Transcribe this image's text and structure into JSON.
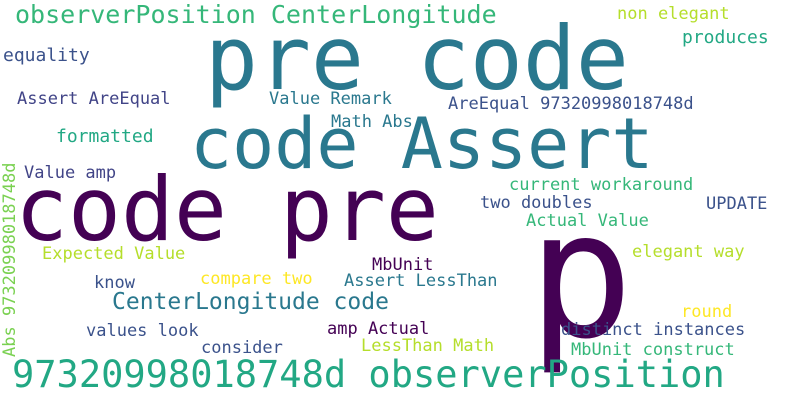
{
  "words": {
    "w01": {
      "text": "pre code",
      "color": "#2a788e"
    },
    "w02": {
      "text": "code Assert",
      "color": "#2a788e"
    },
    "w03": {
      "text": "code pre",
      "color": "#440154"
    },
    "w04": {
      "text": "p",
      "color": "#440154"
    },
    "w05": {
      "text": "observerPosition CenterLongitude",
      "color": "#35b779"
    },
    "w06": {
      "text": "97320998018748d observerPosition",
      "color": "#22a884"
    },
    "w07": {
      "text": "CenterLongitude code",
      "color": "#2a788e"
    },
    "w08": {
      "text": "non elegant",
      "color": "#b5de2b"
    },
    "w09": {
      "text": "produces",
      "color": "#22a884"
    },
    "w10": {
      "text": "equality",
      "color": "#3b528b"
    },
    "w11": {
      "text": "Assert AreEqual",
      "color": "#414487"
    },
    "w12": {
      "text": "Value Remark",
      "color": "#2a788e"
    },
    "w13": {
      "text": "AreEqual 97320998018748d",
      "color": "#3b528b"
    },
    "w14": {
      "text": "Math Abs",
      "color": "#2a788e"
    },
    "w15": {
      "text": "formatted",
      "color": "#22a884"
    },
    "w16": {
      "text": "Value amp",
      "color": "#414487"
    },
    "w17": {
      "text": "current workaround",
      "color": "#35b779"
    },
    "w18": {
      "text": "two doubles",
      "color": "#3b528b"
    },
    "w19": {
      "text": "UPDATE",
      "color": "#3b528b"
    },
    "w20": {
      "text": "Actual Value",
      "color": "#35b779"
    },
    "w21": {
      "text": "Expected Value",
      "color": "#b5de2b"
    },
    "w22": {
      "text": "elegant way",
      "color": "#b5de2b"
    },
    "w23": {
      "text": "MbUnit",
      "color": "#440154"
    },
    "w24": {
      "text": "compare two",
      "color": "#fde725"
    },
    "w25": {
      "text": "know",
      "color": "#3b528b"
    },
    "w26": {
      "text": "Assert LessThan",
      "color": "#2a788e"
    },
    "w27": {
      "text": "round",
      "color": "#fde725"
    },
    "w28": {
      "text": "values look",
      "color": "#3b528b"
    },
    "w29": {
      "text": "amp Actual",
      "color": "#440154"
    },
    "w30": {
      "text": "distinct instances",
      "color": "#3b528b"
    },
    "w31": {
      "text": "consider",
      "color": "#3b528b"
    },
    "w32": {
      "text": "LessThan Math",
      "color": "#b5de2b"
    },
    "w33": {
      "text": "MbUnit construct",
      "color": "#35b779"
    },
    "w34": {
      "text": "Abs 97320998018748d",
      "color": "#7ad151"
    }
  }
}
